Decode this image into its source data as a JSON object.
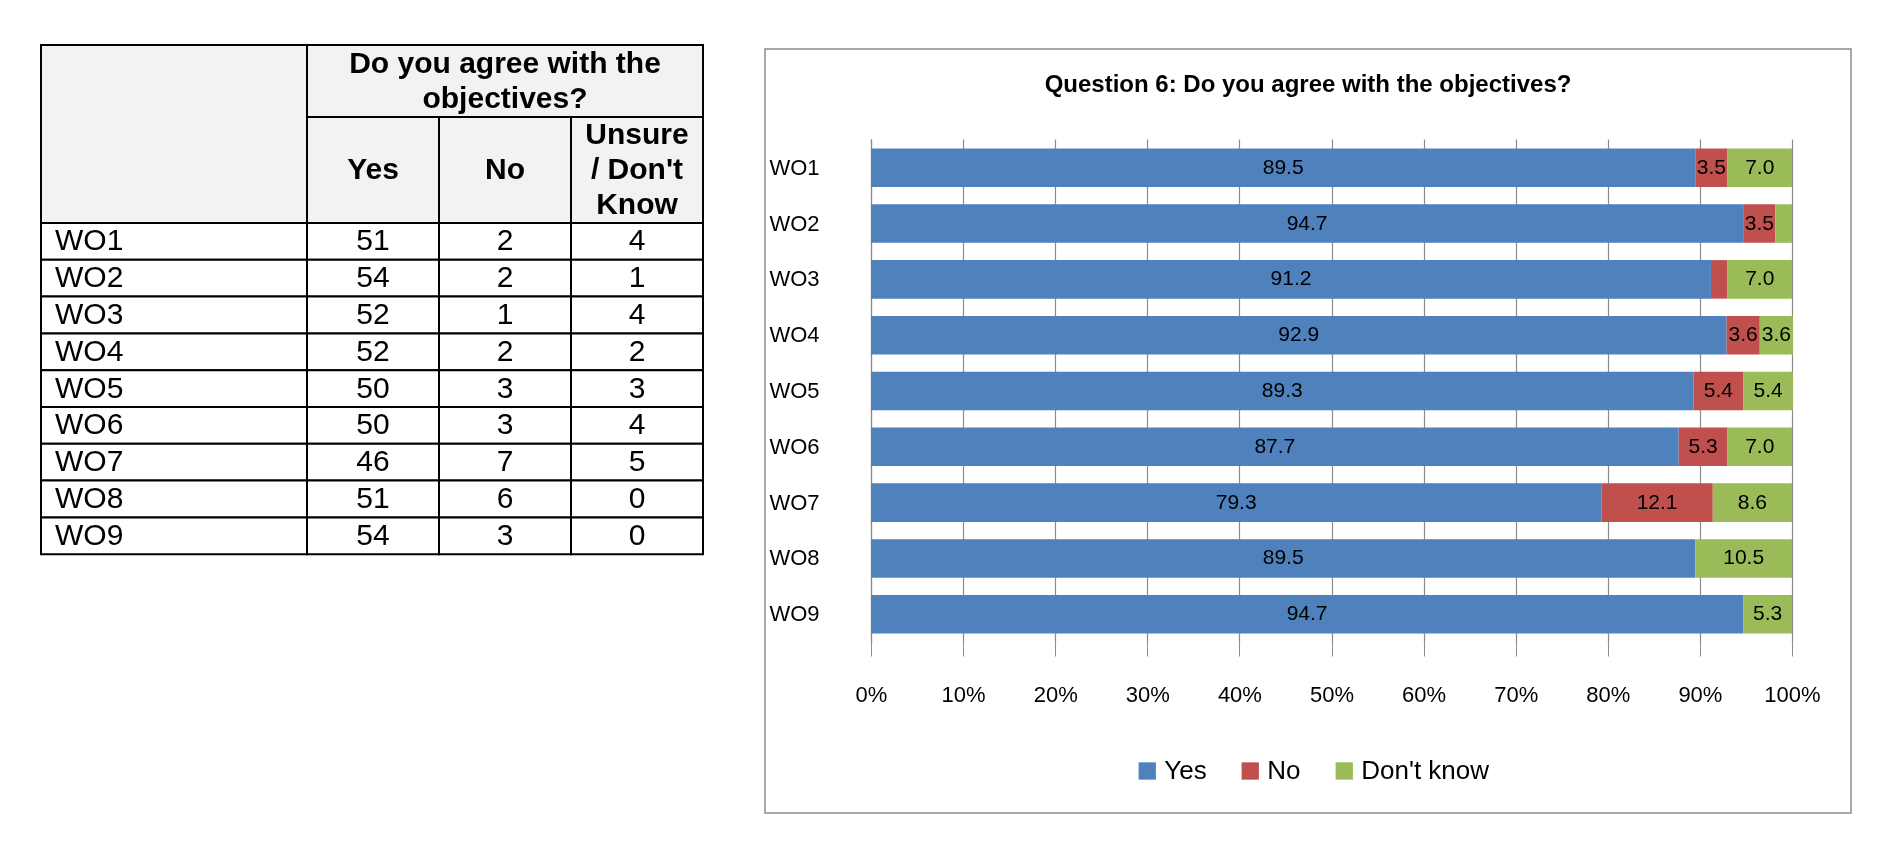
{
  "chart_data": [
    {
      "type": "other",
      "title": "Do you agree with the objectives?",
      "categories": [
        "WO1",
        "WO2",
        "WO3",
        "WO4",
        "WO5",
        "WO6",
        "WO7",
        "WO8",
        "WO9"
      ],
      "series": [
        {
          "name": "Yes",
          "values": [
            51,
            54,
            52,
            52,
            50,
            50,
            46,
            51,
            54
          ]
        },
        {
          "name": "No",
          "values": [
            2,
            2,
            1,
            2,
            3,
            3,
            7,
            6,
            3
          ]
        },
        {
          "name": "Unsure / Don't Know",
          "values": [
            4,
            1,
            4,
            2,
            3,
            4,
            5,
            0,
            0
          ]
        }
      ],
      "data_labels": true
    },
    {
      "type": "bar",
      "orientation": "horizontal",
      "stacked": true,
      "title": "Question 6: Do you agree with the objectives?",
      "categories": [
        "WO1",
        "WO2",
        "WO3",
        "WO4",
        "WO5",
        "WO6",
        "WO7",
        "WO8",
        "WO9"
      ],
      "series": [
        {
          "name": "Yes",
          "color": "#4f81bd",
          "values": [
            89.5,
            94.7,
            91.2,
            92.9,
            89.3,
            87.7,
            79.3,
            89.5,
            94.7
          ],
          "value_labels": [
            "89.5",
            "94.7",
            "91.2",
            "92.9",
            "89.3",
            "87.7",
            "79.3",
            "89.5",
            "94.7"
          ]
        },
        {
          "name": "No",
          "color": "#c0504d",
          "values": [
            3.5,
            3.5,
            1.8,
            3.6,
            5.4,
            5.3,
            12.1,
            null,
            null
          ],
          "value_labels": [
            "3.5",
            "3.5",
            null,
            "3.6",
            "5.4",
            "5.3",
            "12.1",
            null,
            null
          ]
        },
        {
          "name": "Don't know",
          "color": "#9bbb59",
          "values": [
            7.0,
            1.8,
            7.0,
            3.6,
            5.4,
            7.0,
            8.6,
            10.5,
            5.3
          ],
          "value_labels": [
            "7.0",
            null,
            "7.0",
            "3.6",
            "5.4",
            "7.0",
            "8.6",
            "10.5",
            "5.3"
          ]
        }
      ],
      "xlim": [
        0,
        100
      ],
      "xticks": [
        {
          "value": 0,
          "label": "0%"
        },
        {
          "value": 10,
          "label": "10%"
        },
        {
          "value": 20,
          "label": "20%"
        },
        {
          "value": 30,
          "label": "30%"
        },
        {
          "value": 40,
          "label": "40%"
        },
        {
          "value": 50,
          "label": "50%"
        },
        {
          "value": 60,
          "label": "60%"
        },
        {
          "value": 70,
          "label": "70%"
        },
        {
          "value": 80,
          "label": "80%"
        },
        {
          "value": 90,
          "label": "90%"
        },
        {
          "value": 100,
          "label": "100%"
        }
      ],
      "grid": "x",
      "legend": "bottom"
    }
  ]
}
